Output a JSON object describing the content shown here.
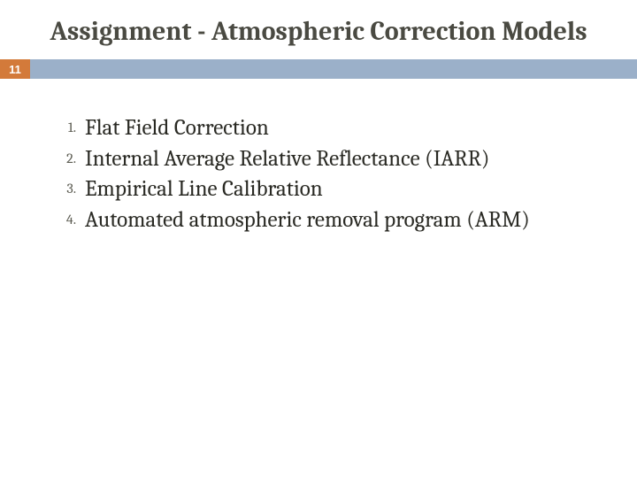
{
  "title": "Assignment - Atmospheric Correction Models",
  "page_number": "11",
  "colors": {
    "title_text": "#4a4a42",
    "badge_bg": "#d37a3a",
    "badge_text": "#ffffff",
    "bar_bg": "#9bb0c9",
    "body_text": "#2a2a24",
    "num_text": "#5c5c52",
    "background": "#ffffff"
  },
  "typography": {
    "title_fontsize": 30,
    "title_weight": 700,
    "item_fontsize": 25,
    "num_fontsize": 16,
    "font_family": "Cambria, Georgia, serif"
  },
  "list": {
    "items": [
      {
        "num": "1.",
        "text": "Flat Field Correction"
      },
      {
        "num": "2.",
        "text": "Internal Average Relative Reflectance (IARR)"
      },
      {
        "num": "3.",
        "text": "Empirical Line Calibration"
      },
      {
        "num": "4.",
        "text": "Automated atmospheric removal program (ARM)"
      }
    ]
  }
}
